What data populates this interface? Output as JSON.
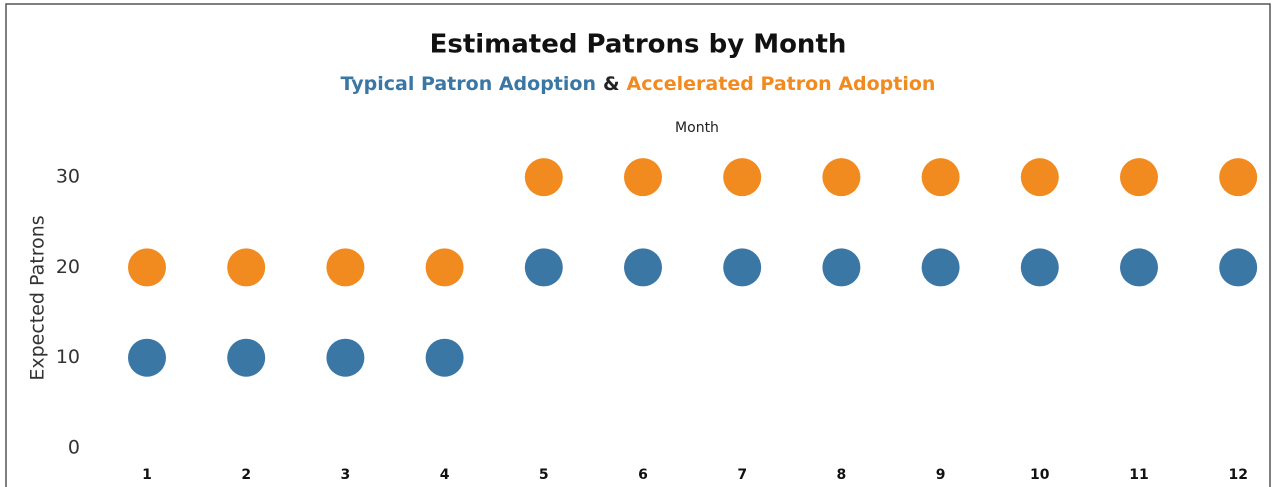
{
  "chart_data": {
    "type": "scatter",
    "title": "Estimated Patrons by Month",
    "legend_separator": "&",
    "x_label": "Month",
    "y_label": "Expected Patrons",
    "categories": [
      "1",
      "2",
      "3",
      "4",
      "5",
      "6",
      "7",
      "8",
      "9",
      "10",
      "11",
      "12"
    ],
    "series": [
      {
        "name": "Typical Patron Adoption",
        "color": "#3b77a5",
        "values": [
          10,
          10,
          10,
          10,
          20,
          20,
          20,
          20,
          20,
          20,
          20,
          20
        ]
      },
      {
        "name": "Accelerated Patron Adoption",
        "color": "#f28b1f",
        "values": [
          20,
          20,
          20,
          20,
          30,
          30,
          30,
          30,
          30,
          30,
          30,
          30
        ]
      }
    ],
    "ylim": [
      0,
      35
    ],
    "yticks": [
      0,
      10,
      20,
      30
    ],
    "grid": false
  }
}
